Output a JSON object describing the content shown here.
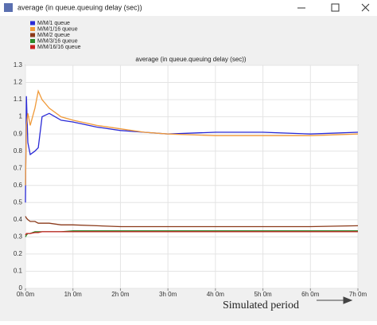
{
  "window_title": "average (in queue.queuing delay (sec))",
  "annotation": "Simulated period",
  "chart_data": {
    "type": "line",
    "title": "average (in queue.queuing delay (sec))",
    "x": [
      0,
      0.02,
      0.05,
      0.1,
      0.2,
      0.27,
      0.35,
      0.5,
      0.75,
      1,
      1.5,
      2,
      2.5,
      3,
      4,
      5,
      6,
      7
    ],
    "series": [
      {
        "name": "M/M/1 queue",
        "color": "#2a2ad6",
        "values": [
          0.5,
          1.12,
          0.85,
          0.78,
          0.8,
          0.82,
          1.0,
          1.02,
          0.98,
          0.97,
          0.94,
          0.92,
          0.91,
          0.9,
          0.91,
          0.91,
          0.9,
          0.91
        ]
      },
      {
        "name": "M/M/1/16 queue",
        "color": "#f09a3a",
        "values": [
          0.6,
          0.95,
          1.02,
          0.95,
          1.05,
          1.15,
          1.1,
          1.05,
          1.0,
          0.98,
          0.95,
          0.93,
          0.91,
          0.9,
          0.89,
          0.89,
          0.89,
          0.9
        ]
      },
      {
        "name": "M/M/2 queue",
        "color": "#8b3a1a",
        "values": [
          0.42,
          0.41,
          0.4,
          0.39,
          0.39,
          0.38,
          0.38,
          0.38,
          0.37,
          0.37,
          0.365,
          0.36,
          0.36,
          0.36,
          0.36,
          0.36,
          0.36,
          0.365
        ]
      },
      {
        "name": "M/M/3/16 queue",
        "color": "#2a8a2a",
        "values": [
          0.3,
          0.31,
          0.32,
          0.32,
          0.33,
          0.33,
          0.33,
          0.33,
          0.33,
          0.335,
          0.335,
          0.335,
          0.335,
          0.335,
          0.335,
          0.335,
          0.335,
          0.335
        ]
      },
      {
        "name": "M/M/16/16 queue",
        "color": "#c82020",
        "values": [
          0.31,
          0.32,
          0.32,
          0.32,
          0.325,
          0.325,
          0.33,
          0.33,
          0.33,
          0.33,
          0.33,
          0.33,
          0.33,
          0.33,
          0.33,
          0.33,
          0.33,
          0.33
        ]
      }
    ],
    "xlim": [
      0,
      7
    ],
    "xticks": [
      {
        "value": 0,
        "label": "0h 0m"
      },
      {
        "value": 1,
        "label": "1h 0m"
      },
      {
        "value": 2,
        "label": "2h 0m"
      },
      {
        "value": 3,
        "label": "3h 0m"
      },
      {
        "value": 4,
        "label": "4h 0m"
      },
      {
        "value": 5,
        "label": "5h 0m"
      },
      {
        "value": 6,
        "label": "6h 0m"
      },
      {
        "value": 7,
        "label": "7h 0m"
      }
    ],
    "ylim": [
      0,
      1.3
    ],
    "yticks": [
      0,
      0.1,
      0.2,
      0.3,
      0.4,
      0.5,
      0.6,
      0.7,
      0.8,
      0.9,
      1,
      1.1,
      1.2,
      1.3
    ],
    "grid": true
  }
}
